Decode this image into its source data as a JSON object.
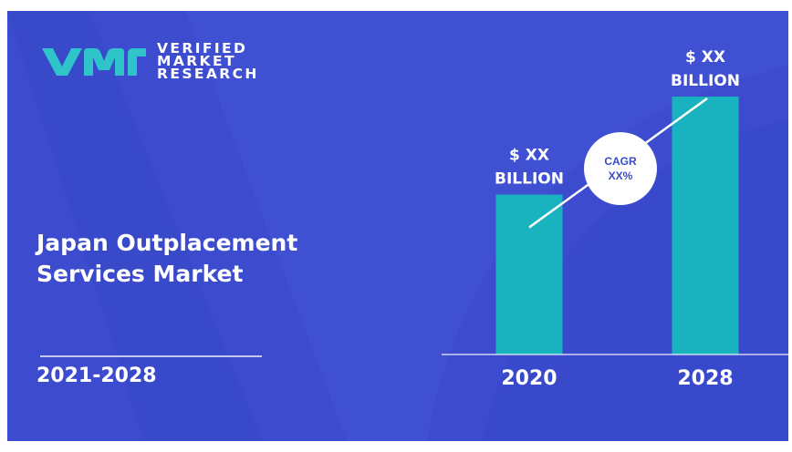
{
  "brand": {
    "logo_icon": "vmr-logo-icon",
    "line1": "VERIFIED",
    "line2": "MARKET",
    "line3": "RESEARCH"
  },
  "report": {
    "title_line1": "Japan Outplacement",
    "title_line2": "Services Market",
    "period": "2021-2028"
  },
  "cagr": {
    "label": "CAGR",
    "value": "XX%"
  },
  "colors": {
    "background": "#3d4ccf",
    "bar": "#19b3bf",
    "logo_accent": "#2ec4c9"
  },
  "chart_data": {
    "type": "bar",
    "categories": [
      "2020",
      "2028"
    ],
    "values": [
      0.62,
      1.0
    ],
    "value_labels": [
      [
        "$ XX",
        "BILLION"
      ],
      [
        "$ XX",
        "BILLION"
      ]
    ],
    "title": "",
    "xlabel": "",
    "ylabel": "",
    "ylim": [
      0,
      1.0
    ],
    "grid": false,
    "legend": "none"
  }
}
